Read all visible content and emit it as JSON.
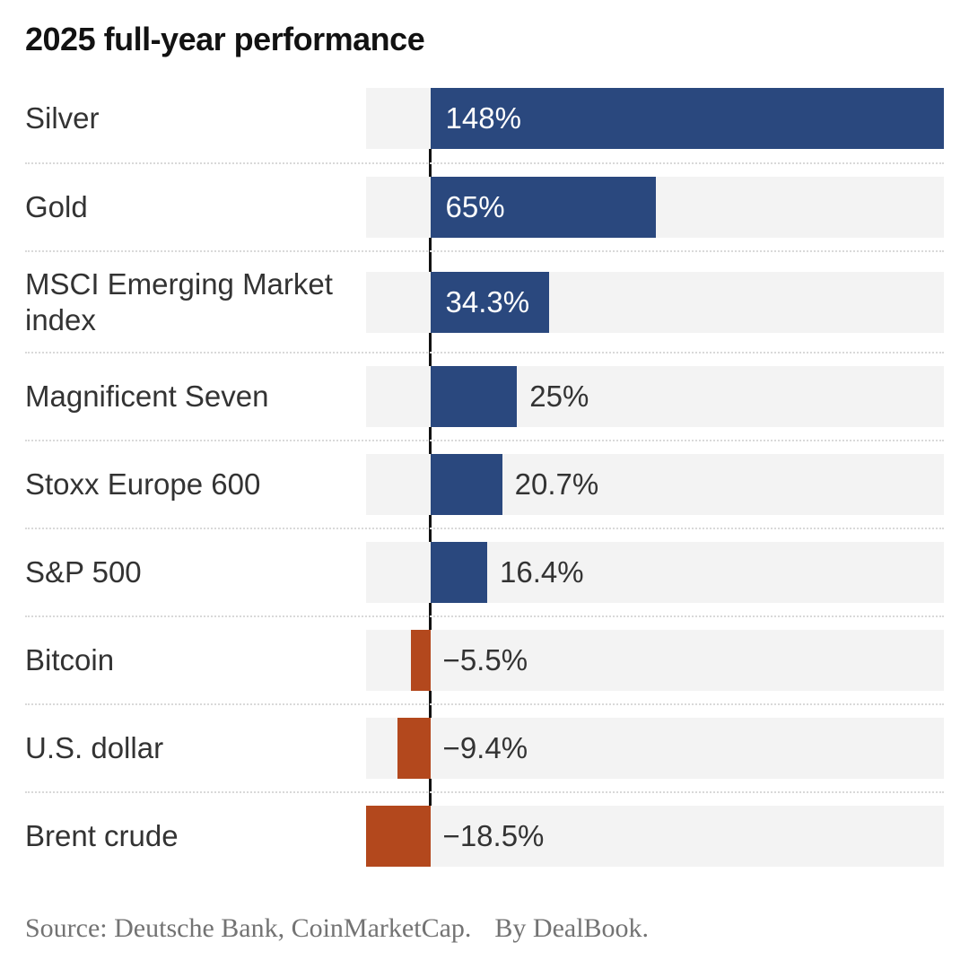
{
  "title": "2025 full-year performance",
  "source": "Source: Deutsche Bank, CoinMarketCap.",
  "byline": "By DealBook.",
  "chart_data": {
    "type": "bar",
    "orientation": "horizontal",
    "title": "2025 full-year performance",
    "categories": [
      "Silver",
      "Gold",
      "MSCI Emerging Market index",
      "Magnificent Seven",
      "Stoxx Europe 600",
      "S&P 500",
      "Bitcoin",
      "U.S. dollar",
      "Brent crude"
    ],
    "values": [
      148,
      65,
      34.3,
      25,
      20.7,
      16.4,
      -5.5,
      -9.4,
      -18.5
    ],
    "value_labels": [
      "148%",
      "65%",
      "34.3%",
      "25%",
      "20.7%",
      "16.4%",
      "−5.5%",
      "−9.4%",
      "−18.5%"
    ],
    "unit": "%",
    "xlim": [
      -18.5,
      148
    ],
    "legend": "none",
    "grid": "dotted-row-separators",
    "colors": {
      "positive": "#2a487e",
      "negative": "#b3481d",
      "track": "#f3f3f3",
      "baseline": "#121212",
      "label_text": "#333333",
      "value_inside_text": "#ffffff",
      "source_text": "#737373"
    }
  }
}
